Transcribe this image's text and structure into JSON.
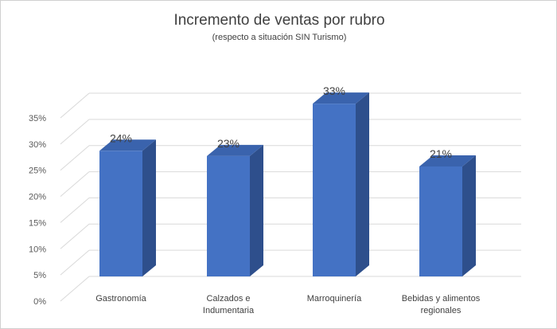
{
  "chart_data": {
    "type": "bar",
    "title": "Incremento de ventas por rubro",
    "subtitle": "(respecto a situación SIN Turismo)",
    "categories": [
      [
        "Gastronomía"
      ],
      [
        "Calzados e",
        "Indumentaria"
      ],
      [
        "Marroquinería"
      ],
      [
        "Bebidas y alimentos",
        "regionales"
      ]
    ],
    "values": [
      24,
      23,
      33,
      21
    ],
    "data_labels": [
      "24%",
      "23%",
      "33%",
      "21%"
    ],
    "ylim": [
      0,
      35
    ],
    "yticks": [
      "0%",
      "5%",
      "10%",
      "15%",
      "20%",
      "25%",
      "30%",
      "35%"
    ],
    "grid": true,
    "legend": "none",
    "colors": {
      "front": "#4472c4",
      "side": "#2e4f8c",
      "top": "#3a63ad",
      "grid": "#d9d9d9"
    }
  }
}
